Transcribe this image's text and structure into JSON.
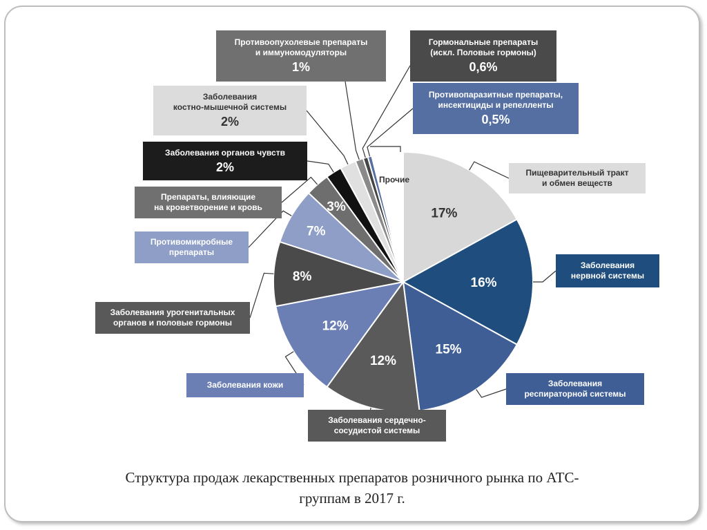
{
  "chart_data": {
    "type": "pie",
    "unit": "%",
    "slices": [
      {
        "label": "Пищеварительный тракт и обмен веществ",
        "value": 17,
        "display": "17%",
        "color": "#d8d8d8"
      },
      {
        "label": "Заболевания нервной системы",
        "value": 16,
        "display": "16%",
        "color": "#1f4e7e"
      },
      {
        "label": "Заболевания респираторной системы",
        "value": 15,
        "display": "15%",
        "color": "#3f5e96"
      },
      {
        "label": "Заболевания сердечно-сосудистой системы",
        "value": 12,
        "display": "12%",
        "color": "#5a5a5a"
      },
      {
        "label": "Заболевания кожи",
        "value": 12,
        "display": "12%",
        "color": "#6b7fb5"
      },
      {
        "label": "Заболевания урогенитальных органов и половые гормоны",
        "value": 8,
        "display": "8%",
        "color": "#4a4a4a"
      },
      {
        "label": "Противомикробные препараты",
        "value": 7,
        "display": "7%",
        "color": "#8e9ec7"
      },
      {
        "label": "Препараты, влияющие на кроветворение и кровь",
        "value": 3,
        "display": "3%",
        "color": "#6e6e6e"
      },
      {
        "label": "Заболевания органов чувств",
        "value": 2,
        "display": "2%",
        "color": "#111111"
      },
      {
        "label": "Заболевания костно-мышечной системы",
        "value": 2,
        "display": "2%",
        "color": "#e0e0e0"
      },
      {
        "label": "Противоопухолевые препараты и иммуномодуляторы",
        "value": 1,
        "display": "1%",
        "color": "#8a8a8a"
      },
      {
        "label": "Гормональные препараты (искл. Половые гормоны)",
        "value": 0.6,
        "display": "0,6%",
        "color": "#454545"
      },
      {
        "label": "Противопаразитные препараты, инсектициды и репелленты",
        "value": 0.5,
        "display": "0,5%",
        "color": "#556fa3"
      },
      {
        "label": "Прочие",
        "value": 3.9,
        "display": "",
        "color": "#ffffff"
      }
    ]
  },
  "callouts": {
    "digestive": {
      "line1": "Пищеварительный тракт",
      "line2": "и обмен веществ"
    },
    "nervous": {
      "line1": "Заболевания",
      "line2": "нервной системы"
    },
    "respiratory": {
      "line1": "Заболевания",
      "line2": "респираторной системы"
    },
    "cardio": {
      "line1": "Заболевания сердечно-",
      "line2": "сосудистой системы"
    },
    "skin": {
      "line1": "Заболевания кожи"
    },
    "urogenital": {
      "line1": "Заболевания урогенитальных",
      "line2": "органов и половые гормоны"
    },
    "antimicrobial": {
      "line1": "Противомикробные",
      "line2": "препараты"
    },
    "blood": {
      "line1": "Препараты, влияющие",
      "line2": "на кроветворение и кровь"
    },
    "senses": {
      "line1": "Заболевания органов чувств",
      "pct": "2%"
    },
    "musculo": {
      "line1": "Заболевания",
      "line2": "костно-мышечной системы",
      "pct": "2%"
    },
    "antitumor": {
      "line1": "Противоопухолевые препараты",
      "line2": "и иммуномодуляторы",
      "pct": "1%"
    },
    "hormonal": {
      "line1": "Гормональные препараты",
      "line2": "(искл. Половые гормоны)",
      "pct": "0,6%"
    },
    "antiparasitic": {
      "line1": "Противопаразитные препараты,",
      "line2": "инсектициды и репелленты",
      "pct": "0,5%"
    },
    "other": {
      "line1": "Прочие"
    }
  },
  "caption": {
    "line1": "Структура продаж лекарственных препаратов розничного рынка по АТС-",
    "line2": "группам в 2017 г."
  }
}
